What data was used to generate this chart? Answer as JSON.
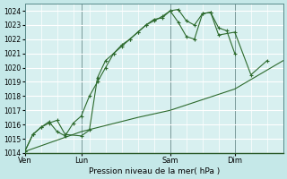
{
  "bg_color": "#c5e8e8",
  "plot_bg_color": "#d8f0f0",
  "grid_color": "#ffffff",
  "line_color": "#2d6a2d",
  "xlabel": "Pression niveau de la mer( hPa )",
  "ylim": [
    1014,
    1024.5
  ],
  "yticks": [
    1014,
    1015,
    1016,
    1017,
    1018,
    1019,
    1020,
    1021,
    1022,
    1023,
    1024
  ],
  "day_labels": [
    "Ven",
    "Lun",
    "Sam",
    "Dim"
  ],
  "day_positions": [
    0,
    3.5,
    9,
    13
  ],
  "xlim": [
    0,
    16
  ],
  "series1_x": [
    0,
    0.5,
    1.0,
    1.5,
    2.0,
    2.5,
    3.5,
    4.0,
    4.5,
    5.0,
    5.5,
    6.0,
    6.5,
    7.0,
    7.5,
    8.0,
    8.5,
    9.0,
    9.5,
    10.0,
    10.5,
    11.0,
    11.5,
    12.0,
    12.5,
    13.0
  ],
  "series1_y": [
    1014.1,
    1015.3,
    1015.8,
    1016.1,
    1016.3,
    1015.3,
    1015.2,
    1015.6,
    1019.3,
    1020.5,
    1021.0,
    1021.6,
    1022.0,
    1022.5,
    1023.0,
    1023.4,
    1023.5,
    1024.0,
    1024.1,
    1023.3,
    1023.0,
    1023.8,
    1023.9,
    1022.8,
    1022.6,
    1021.0
  ],
  "series2_x": [
    0,
    0.5,
    1.0,
    1.5,
    2.0,
    2.5,
    3.0,
    3.5,
    4.0,
    4.5,
    5.0,
    5.5,
    6.0,
    6.5,
    7.0,
    7.5,
    8.0,
    8.5,
    9.0,
    9.5,
    10.0,
    10.5,
    11.0,
    11.5,
    12.0,
    13.0,
    14.0,
    15.0
  ],
  "series2_y": [
    1014.1,
    1015.3,
    1015.8,
    1016.2,
    1015.5,
    1015.2,
    1016.1,
    1016.6,
    1018.0,
    1019.0,
    1020.0,
    1021.0,
    1021.5,
    1022.0,
    1022.5,
    1023.0,
    1023.3,
    1023.6,
    1024.0,
    1023.2,
    1022.2,
    1022.0,
    1023.8,
    1023.9,
    1022.3,
    1022.5,
    1019.5,
    1020.5
  ],
  "series3_x": [
    0,
    3.5,
    7,
    9,
    13,
    16
  ],
  "series3_y": [
    1014.1,
    1015.5,
    1016.5,
    1017.0,
    1018.5,
    1020.5
  ],
  "figsize": [
    3.2,
    2.0
  ],
  "dpi": 100
}
